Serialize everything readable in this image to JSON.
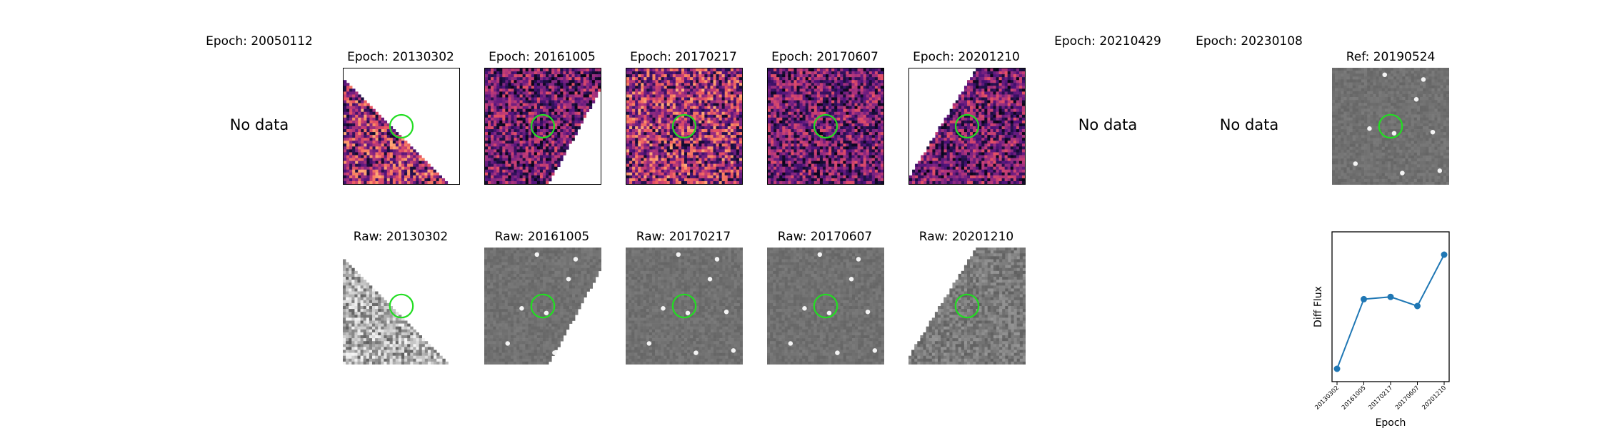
{
  "top_row": [
    {
      "title": "Epoch: 20050112",
      "no_data": "No data"
    },
    {
      "title": "Epoch: 20130302"
    },
    {
      "title": "Epoch: 20161005"
    },
    {
      "title": "Epoch: 20170217"
    },
    {
      "title": "Epoch: 20170607"
    },
    {
      "title": "Epoch: 20201210"
    },
    {
      "title": "Epoch: 20210429",
      "no_data": "No data"
    },
    {
      "title": "Epoch: 20230108",
      "no_data": "No data"
    },
    {
      "title": "Ref: 20190524"
    }
  ],
  "bottom_row": [
    {
      "title": "Raw: 20130302"
    },
    {
      "title": "Raw: 20161005"
    },
    {
      "title": "Raw: 20170217"
    },
    {
      "title": "Raw: 20170607"
    },
    {
      "title": "Raw: 20201210"
    }
  ],
  "colors": {
    "circle": "#22dd22",
    "line": "#1f77b4"
  },
  "chart_data": {
    "type": "line",
    "x": [
      "20130302",
      "20161005",
      "20170217",
      "20170607",
      "20201210"
    ],
    "values": [
      0.0,
      0.61,
      0.63,
      0.55,
      1.0
    ],
    "xlabel": "Epoch",
    "ylabel": "Diff Flux",
    "y_ticks_shown": false,
    "marker": "circle",
    "grid": false
  }
}
